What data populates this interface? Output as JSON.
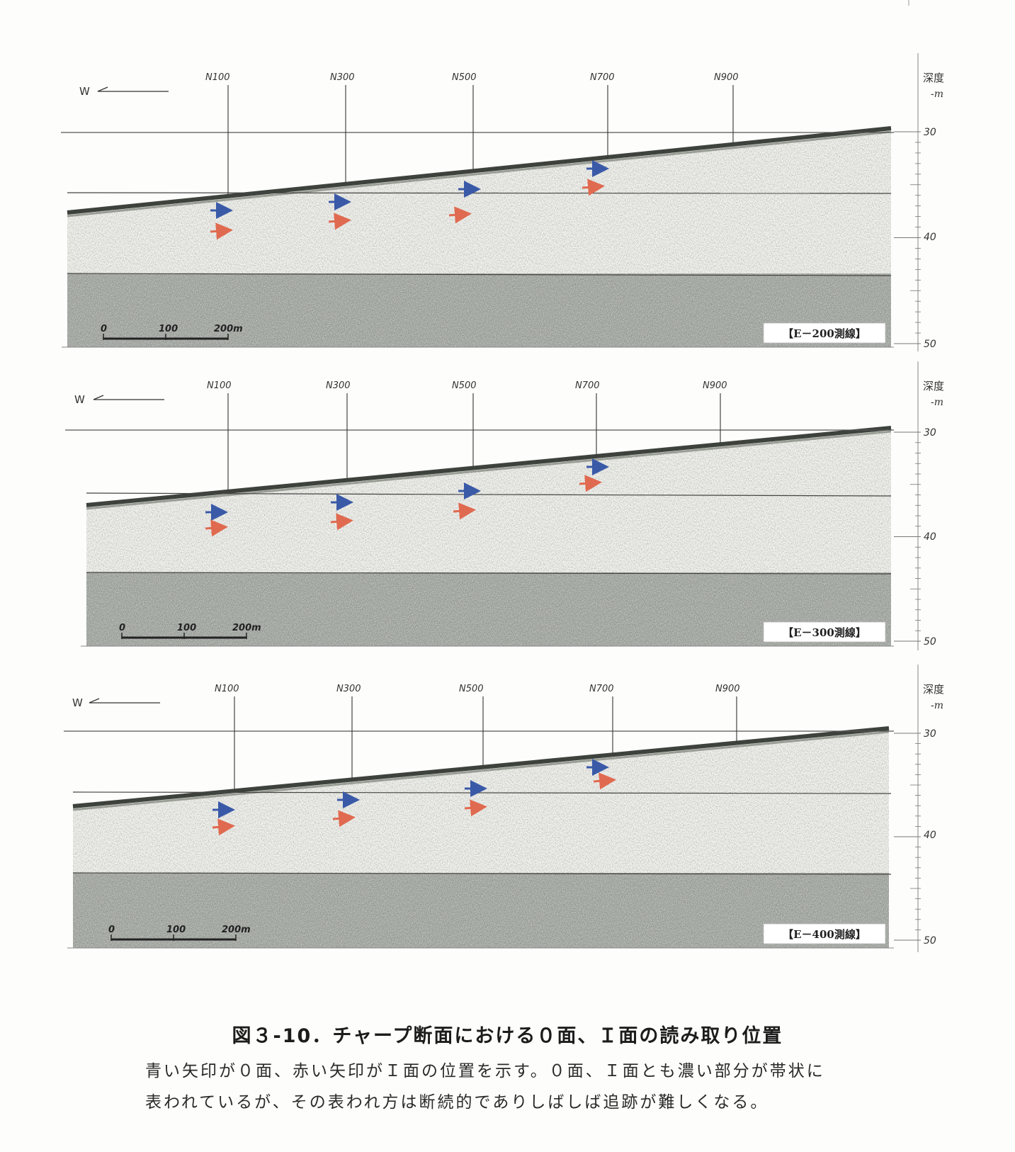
{
  "panels": [
    {
      "direction_label": "W",
      "station_labels": [
        "N100",
        "N300",
        "N500",
        "N700",
        "N900"
      ],
      "depth_axis_label": [
        "深度",
        "-m"
      ],
      "depth_ticks": [
        "30",
        "40",
        "50"
      ],
      "scale_labels": [
        "0",
        "100",
        "200m"
      ],
      "line_label": "【E－200測線】"
    },
    {
      "direction_label": "W",
      "station_labels": [
        "N100",
        "N300",
        "N500",
        "N700",
        "N900"
      ],
      "depth_axis_label": [
        "深度",
        "-m"
      ],
      "depth_ticks": [
        "30",
        "40",
        "50"
      ],
      "scale_labels": [
        "0",
        "100",
        "200m"
      ],
      "line_label": "【E－300測線】"
    },
    {
      "direction_label": "W",
      "station_labels": [
        "N100",
        "N300",
        "N500",
        "N700",
        "N900"
      ],
      "depth_axis_label": [
        "深度",
        "-m"
      ],
      "depth_ticks": [
        "30",
        "40",
        "50"
      ],
      "scale_labels": [
        "0",
        "100",
        "200m"
      ],
      "line_label": "【E－400測線】"
    }
  ],
  "arrow_colors": {
    "surface_0": "#3a5aa8",
    "surface_I": "#e06a50"
  },
  "caption": {
    "title": "図３-10．チャープ断面における０面、Ｉ面の読み取り位置",
    "line1": "青い矢印が０面、赤い矢印がＩ面の位置を示す。０面、Ｉ面とも濃い部分が帯状に",
    "line2": "表われているが、その表われ方は断続的でありしばしば追跡が難しくなる。"
  }
}
